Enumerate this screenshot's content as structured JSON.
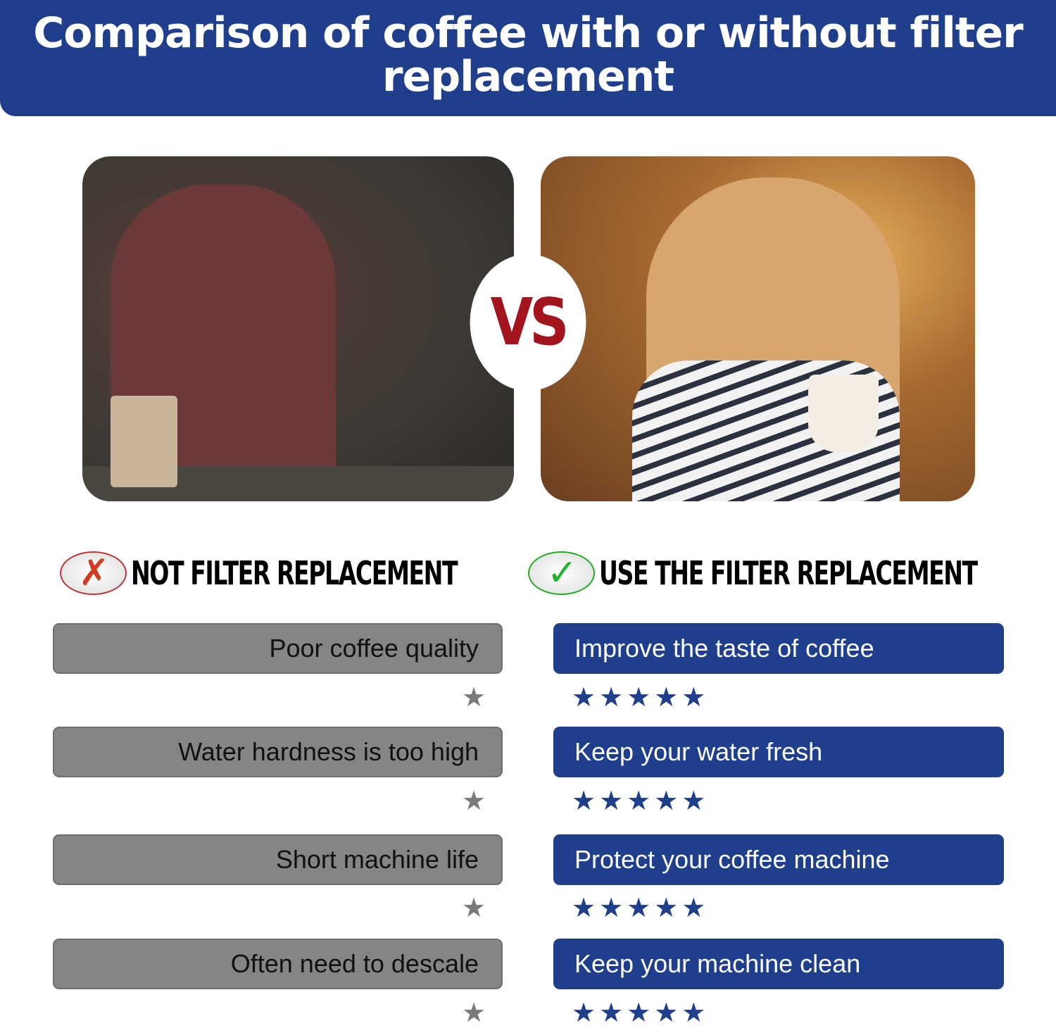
{
  "title": "Comparison of coffee with or without filter replacement",
  "vs_label": "VS",
  "left": {
    "heading": "NOT FILTER REPLACEMENT",
    "icon": "red-x-speech-bubble-icon",
    "color": "#858585",
    "items": [
      {
        "label": "Poor coffee quality",
        "rating": 1
      },
      {
        "label": "Water hardness is too high",
        "rating": 1
      },
      {
        "label": "Short machine life",
        "rating": 1
      },
      {
        "label": "Often need to descale",
        "rating": 1
      }
    ]
  },
  "right": {
    "heading": "USE THE FILTER REPLACEMENT",
    "icon": "green-check-speech-bubble-icon",
    "color": "#1f3f8c",
    "items": [
      {
        "label": "Improve the taste of coffee",
        "rating": 5
      },
      {
        "label": "Keep your water fresh",
        "rating": 5
      },
      {
        "label": "Protect your coffee machine",
        "rating": 5
      },
      {
        "label": "Keep your machine clean",
        "rating": 5
      }
    ]
  },
  "star_max": 5,
  "vs_color": "#a3141c"
}
